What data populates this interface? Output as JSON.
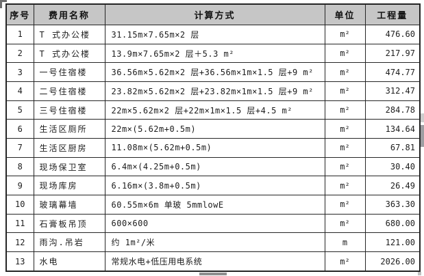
{
  "table": {
    "columns": [
      {
        "label": "序号"
      },
      {
        "label": "费用名称"
      },
      {
        "label": "计算方式"
      },
      {
        "label": "单位"
      },
      {
        "label": "工程量"
      }
    ],
    "rows": [
      {
        "index": "1",
        "name": "T 式办公楼",
        "calc": "31.15m×7.65m×2 层",
        "unit": "m²",
        "qty": "476.60"
      },
      {
        "index": "2",
        "name": "T 式办公楼",
        "calc": "13.9m×7.65m×2 层＋5.3 m²",
        "unit": "m²",
        "qty": "217.97"
      },
      {
        "index": "3",
        "name": "一号住宿楼",
        "calc": "36.56m×5.62m×2 层+36.56m×1m×1.5 层+9 m²",
        "unit": "m²",
        "qty": "474.77"
      },
      {
        "index": "4",
        "name": "二号住宿楼",
        "calc": "23.82m×5.62m×2 层+23.82m×1m×1.5 层+9 m²",
        "unit": "m²",
        "qty": "312.47"
      },
      {
        "index": "5",
        "name": "三号住宿楼",
        "calc": "22m×5.62m×2 层+22m×1m×1.5 层+4.5 m²",
        "unit": "m²",
        "qty": "284.78"
      },
      {
        "index": "6",
        "name": "生活区厕所",
        "calc": "22m×(5.62m+0.5m)",
        "unit": "m²",
        "qty": "134.64"
      },
      {
        "index": "7",
        "name": "生活区厨房",
        "calc": "11.08m×(5.62m+0.5m)",
        "unit": "m²",
        "qty": "67.81"
      },
      {
        "index": "8",
        "name": "现场保卫室",
        "calc": "6.4m×(4.25m+0.5m)",
        "unit": "m²",
        "qty": "30.40"
      },
      {
        "index": "9",
        "name": "现场库房",
        "calc": "6.16m×(3.8m+0.5m)",
        "unit": "m²",
        "qty": "26.49"
      },
      {
        "index": "10",
        "name": "玻璃幕墙",
        "calc": "60.55m×6m  单玻 5mmlowE",
        "unit": "m²",
        "qty": "363.30"
      },
      {
        "index": "11",
        "name": "石膏板吊顶",
        "calc": "600×600",
        "unit": "m²",
        "qty": "680.00"
      },
      {
        "index": "12",
        "name": "雨沟.吊岩",
        "calc": "约 1m²/米",
        "unit": "m",
        "qty": "121.00"
      },
      {
        "index": "13",
        "name": "水电",
        "calc": "常规水电+低压用电系统",
        "unit": "m²",
        "qty": "2026.00"
      }
    ]
  },
  "colors": {
    "header_bg": "#c6c6c6",
    "border": "#242424",
    "scrollbar_thumb": "#9e9ea2"
  }
}
